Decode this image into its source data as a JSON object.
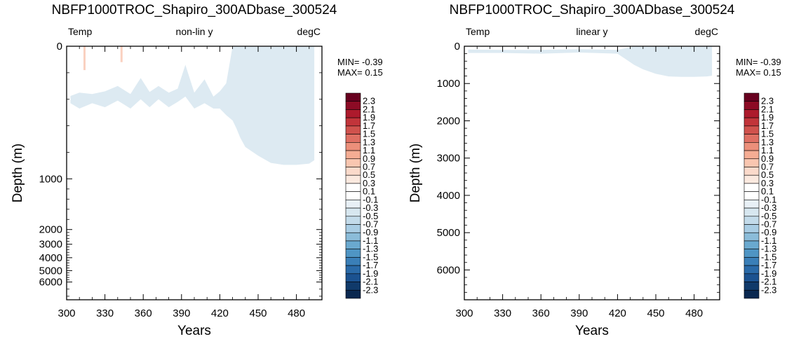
{
  "chart_data": [
    {
      "type": "heatmap",
      "title": "NBFP1000TROC_Shapiro_300ADbase_300524",
      "left_label": "Temp",
      "center_label": "non-lin y",
      "right_label": "degC",
      "xlabel": "Years",
      "ylabel": "Depth (m)",
      "y_scale": "non-linear",
      "xlim": [
        300,
        500
      ],
      "ylim": [
        0,
        6500
      ],
      "x_ticks": [
        300,
        330,
        360,
        390,
        420,
        450,
        480
      ],
      "y_ticks": [
        0,
        1000,
        2000,
        3000,
        4000,
        5000,
        6000
      ],
      "min_label": "MIN= -0.39",
      "max_label": "MAX=  0.15",
      "anomaly_depth_profile": {
        "years": [
          303,
          310,
          320,
          330,
          340,
          345,
          350,
          358,
          365,
          372,
          380,
          387,
          393,
          400,
          408,
          415,
          420,
          425,
          430,
          433,
          436,
          440,
          450,
          460,
          470,
          480,
          490,
          494
        ],
        "depth_m": [
          430,
          470,
          430,
          460,
          410,
          440,
          470,
          400,
          460,
          400,
          460,
          420,
          380,
          470,
          430,
          470,
          470,
          520,
          560,
          620,
          690,
          760,
          825,
          880,
          895,
          895,
          885,
          860
        ],
        "top_depth_m": [
          375,
          350,
          360,
          340,
          300,
          330,
          360,
          240,
          345,
          300,
          350,
          320,
          140,
          350,
          250,
          380,
          340,
          280,
          0,
          0,
          0,
          0,
          0,
          0,
          0,
          0,
          0,
          0
        ],
        "value_bin": "-0.1 to 0.1"
      }
    },
    {
      "type": "heatmap",
      "title": "NBFP1000TROC_Shapiro_300ADbase_300524",
      "left_label": "Temp",
      "center_label": "linear y",
      "right_label": "degC",
      "xlabel": "Years",
      "ylabel": "Depth (m)",
      "y_scale": "linear",
      "xlim": [
        300,
        500
      ],
      "ylim": [
        0,
        6800
      ],
      "x_ticks": [
        300,
        330,
        360,
        390,
        420,
        450,
        480
      ],
      "y_ticks": [
        0,
        1000,
        2000,
        3000,
        4000,
        5000,
        6000
      ],
      "min_label": "MIN= -0.39",
      "max_label": "MAX=  0.15",
      "anomaly_depth_profile": {
        "years": [
          303,
          330,
          360,
          390,
          420,
          433,
          440,
          450,
          460,
          470,
          480,
          490,
          494
        ],
        "depth_m": [
          180,
          180,
          200,
          170,
          200,
          500,
          620,
          740,
          810,
          820,
          820,
          810,
          790
        ],
        "top_depth_m": [
          90,
          100,
          100,
          80,
          100,
          0,
          0,
          0,
          0,
          0,
          0,
          0,
          0
        ],
        "value_bin": "-0.1 to 0.1"
      }
    }
  ],
  "colorbar": {
    "labels": [
      "2.3",
      "2.1",
      "1.9",
      "1.7",
      "1.5",
      "1.3",
      "1.1",
      "0.9",
      "0.7",
      "0.5",
      "0.3",
      "0.1",
      "-0.1",
      "-0.3",
      "-0.5",
      "-0.7",
      "-0.9",
      "-1.1",
      "-1.3",
      "-1.5",
      "-1.7",
      "-1.9",
      "-2.1",
      "-2.3"
    ],
    "colors": [
      "#67001f",
      "#8c0b25",
      "#ad1a2c",
      "#c2343a",
      "#d0524d",
      "#df6f63",
      "#ec8f7a",
      "#f5ad94",
      "#f9c6b0",
      "#fbdacb",
      "#fbe9df",
      "#ffffff",
      "#ffffff",
      "#e8f0f6",
      "#d7e7f0",
      "#c3dbea",
      "#a9cde4",
      "#8bbcd9",
      "#6aa9cf",
      "#4f95c4",
      "#3a7fb8",
      "#2a6aa8",
      "#1b5290",
      "#103a6a",
      "#0a2850"
    ],
    "anomaly_fill": "#ddeaf2",
    "warm_fill": "#f9c6b0"
  }
}
